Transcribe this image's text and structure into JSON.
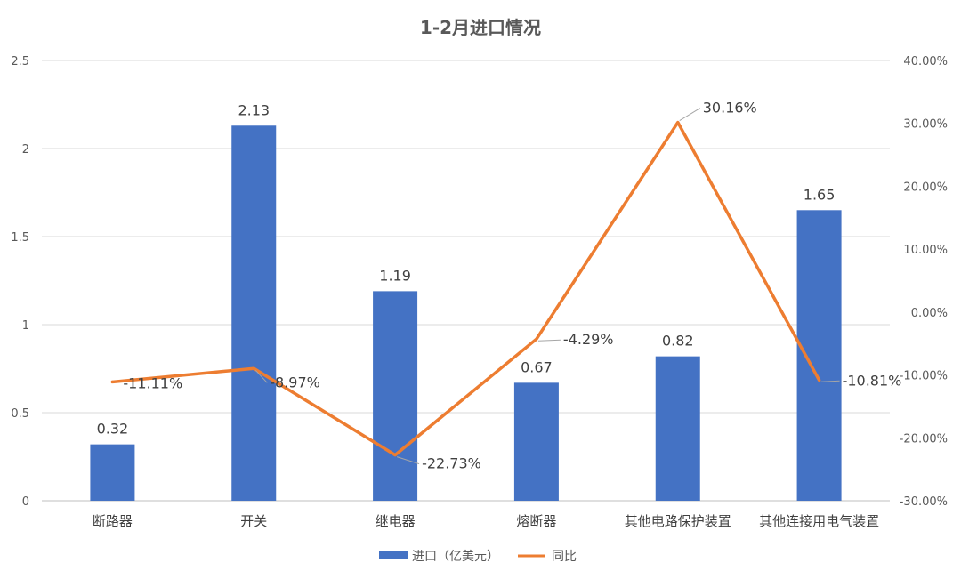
{
  "chart_data": {
    "type": "bar",
    "title": "1-2月进口情况",
    "categories": [
      "断路器",
      "开关",
      "继电器",
      "熔断器",
      "其他电路保护装置",
      "其他连接用电气装置"
    ],
    "series": [
      {
        "name": "进口（亿美元）",
        "type": "bar",
        "axis": "left",
        "values": [
          0.32,
          2.13,
          1.19,
          0.67,
          0.82,
          1.65
        ],
        "labels": [
          "0.32",
          "2.13",
          "1.19",
          "0.67",
          "0.82",
          "1.65"
        ],
        "color": "#4472C4"
      },
      {
        "name": "同比",
        "type": "line",
        "axis": "right",
        "values": [
          -11.11,
          -8.97,
          -22.73,
          -4.29,
          30.16,
          -10.81
        ],
        "labels": [
          "-11.11%",
          "-8.97%",
          "-22.73%",
          "-4.29%",
          "30.16%",
          "-10.81%"
        ],
        "color": "#ED7D31"
      }
    ],
    "y_left": {
      "min": 0,
      "max": 2.5,
      "ticks": [
        0,
        0.5,
        1,
        1.5,
        2,
        2.5
      ],
      "tick_labels": [
        "0",
        "0.5",
        "1",
        "1.5",
        "2",
        "2.5"
      ]
    },
    "y_right": {
      "min": -30,
      "max": 40,
      "ticks": [
        -30,
        -20,
        -10,
        0,
        10,
        20,
        30,
        40
      ],
      "tick_labels": [
        "-30.00%",
        "-20.00%",
        "-10.00%",
        "0.00%",
        "10.00%",
        "20.00%",
        "30.00%",
        "40.00%"
      ]
    },
    "grid": true,
    "legend_position": "bottom"
  }
}
